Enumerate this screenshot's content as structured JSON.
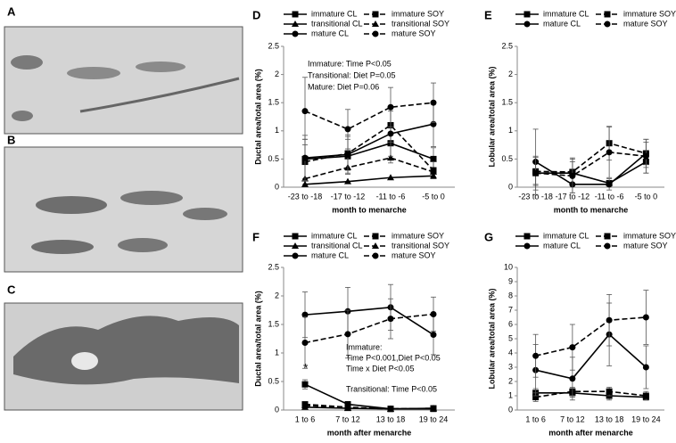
{
  "panels": [
    "A",
    "B",
    "C"
  ],
  "chart_data": [
    {
      "type": "line",
      "label": "D",
      "categories": [
        "-23 to -18",
        "-17 to -12",
        "-11 to -6",
        "-5 to 0"
      ],
      "xlabel": "month to menarche",
      "ylabel": "Ductal area/total area (%)",
      "ylim": [
        0,
        2.5
      ],
      "yticks": [
        0,
        0.5,
        1,
        1.5,
        2,
        2.5
      ],
      "annotations": [
        "Immature: Time P<0.05",
        "Transitional: Diet P=0.05",
        "Mature: Diet P=0.06"
      ],
      "series": [
        {
          "name": "immature CL",
          "color": "#000000",
          "dashed": false,
          "marker": "square",
          "values": [
            0.5,
            0.55,
            0.78,
            0.5
          ],
          "errors": [
            0.35,
            0.3,
            0.35,
            0.2
          ]
        },
        {
          "name": "immature SOY",
          "color": "#000000",
          "dashed": true,
          "marker": "square",
          "values": [
            0.45,
            0.6,
            1.1,
            0.3
          ],
          "errors": [
            0.4,
            0.3,
            0.3,
            0.15
          ]
        },
        {
          "name": "transitional CL",
          "color": "#000000",
          "dashed": false,
          "marker": "triangle",
          "values": [
            0.05,
            0.1,
            0.17,
            0.2
          ]
        },
        {
          "name": "transitional SOY",
          "color": "#000000",
          "dashed": true,
          "marker": "triangle",
          "values": [
            0.15,
            0.35,
            0.52,
            0.27
          ]
        },
        {
          "name": "mature CL",
          "color": "#000000",
          "dashed": false,
          "marker": "circle",
          "values": [
            0.52,
            0.58,
            0.95,
            1.12
          ],
          "errors": [
            0.4,
            0.35,
            0.4,
            0.4
          ]
        },
        {
          "name": "mature SOY",
          "color": "#000000",
          "dashed": true,
          "marker": "circle",
          "values": [
            1.35,
            1.03,
            1.42,
            1.5
          ],
          "errors": [
            0.6,
            0.35,
            0.35,
            0.35
          ]
        }
      ]
    },
    {
      "type": "line",
      "label": "E",
      "categories": [
        "-23 to -18",
        "-17 to -12",
        "-11 to -6",
        "-5 to 0"
      ],
      "xlabel": "month to menarche",
      "ylabel": "Lobular area/total area (%)",
      "ylim": [
        0,
        2.5
      ],
      "yticks": [
        0,
        0.5,
        1,
        1.5,
        2,
        2.5
      ],
      "series": [
        {
          "name": "immature CL",
          "color": "#000000",
          "dashed": false,
          "marker": "square",
          "values": [
            0.25,
            0.25,
            0.07,
            0.45
          ],
          "errors": [
            0.2,
            0.2,
            0.05,
            0.2
          ]
        },
        {
          "name": "immature SOY",
          "color": "#000000",
          "dashed": true,
          "marker": "square",
          "values": [
            0.28,
            0.27,
            0.78,
            0.6
          ],
          "errors": [
            0.25,
            0.25,
            0.3,
            0.2
          ]
        },
        {
          "name": "mature CL",
          "color": "#000000",
          "dashed": false,
          "marker": "circle",
          "values": [
            0.45,
            0.05,
            0.05,
            0.6
          ],
          "errors": [
            0.58,
            0.15,
            0.1,
            0.25
          ]
        },
        {
          "name": "mature SOY",
          "color": "#000000",
          "dashed": true,
          "marker": "circle",
          "values": [
            0.25,
            0.2,
            0.62,
            0.55
          ],
          "errors": [
            0.3,
            0.3,
            0.45,
            0.3
          ]
        }
      ]
    },
    {
      "type": "line",
      "label": "F",
      "categories": [
        "1 to 6",
        "7 to 12",
        "13 to 18",
        "19 to 24"
      ],
      "xlabel": "month after menarche",
      "ylabel": "Ductal area/total area (%)",
      "ylim": [
        0,
        2.5
      ],
      "yticks": [
        0,
        0.5,
        1,
        1.5,
        2,
        2.5
      ],
      "annotations": [
        "*",
        "Immature:",
        "Time P<0.001,Diet P<0.05",
        "Time x Diet P<0.05",
        "Transitional: Time P<0.05"
      ],
      "series": [
        {
          "name": "immature CL",
          "color": "#000000",
          "dashed": false,
          "marker": "square",
          "values": [
            0.45,
            0.1,
            0.02,
            0.03
          ],
          "errors": [
            0.08,
            0.05,
            0.02,
            0.02
          ]
        },
        {
          "name": "immature SOY",
          "color": "#000000",
          "dashed": true,
          "marker": "square",
          "values": [
            0.1,
            0.05,
            0.02,
            0.02
          ]
        },
        {
          "name": "transitional CL",
          "color": "#000000",
          "dashed": false,
          "marker": "triangle",
          "values": [
            0.05,
            0.03,
            0.02,
            0.02
          ]
        },
        {
          "name": "transitional SOY",
          "color": "#000000",
          "dashed": true,
          "marker": "triangle",
          "values": [
            0.08,
            0.04,
            0.02,
            0.03
          ]
        },
        {
          "name": "mature CL",
          "color": "#000000",
          "dashed": false,
          "marker": "circle",
          "values": [
            1.67,
            1.73,
            1.8,
            1.32
          ],
          "errors": [
            0.4,
            0.42,
            0.4,
            0.35
          ]
        },
        {
          "name": "mature SOY",
          "color": "#000000",
          "dashed": true,
          "marker": "circle",
          "values": [
            1.18,
            1.33,
            1.6,
            1.68
          ],
          "errors": [
            0.45,
            0.42,
            0.35,
            0.3
          ]
        }
      ]
    },
    {
      "type": "line",
      "label": "G",
      "categories": [
        "1 to 6",
        "7 to 12",
        "13 to 18",
        "19 to 24"
      ],
      "xlabel": "month after menarche",
      "ylabel": "Lobular area/total area (%)",
      "ylim": [
        0,
        10
      ],
      "yticks": [
        0,
        1,
        2,
        3,
        4,
        5,
        6,
        7,
        8,
        9,
        10
      ],
      "series": [
        {
          "name": "immature CL",
          "color": "#000000",
          "dashed": false,
          "marker": "square",
          "values": [
            1.2,
            1.2,
            1.0,
            0.9
          ],
          "errors": [
            0.3,
            0.3,
            0.3,
            0.2
          ]
        },
        {
          "name": "immature SOY",
          "color": "#000000",
          "dashed": true,
          "marker": "square",
          "values": [
            0.9,
            1.3,
            1.3,
            1.0
          ],
          "errors": [
            0.3,
            0.3,
            0.3,
            0.3
          ]
        },
        {
          "name": "mature CL",
          "color": "#000000",
          "dashed": false,
          "marker": "circle",
          "values": [
            2.8,
            2.2,
            5.3,
            3.0
          ],
          "errors": [
            1.8,
            1.5,
            2.2,
            1.5
          ]
        },
        {
          "name": "mature SOY",
          "color": "#000000",
          "dashed": true,
          "marker": "circle",
          "values": [
            3.8,
            4.4,
            6.3,
            6.5
          ],
          "errors": [
            1.5,
            1.6,
            1.8,
            1.9
          ]
        }
      ]
    }
  ]
}
